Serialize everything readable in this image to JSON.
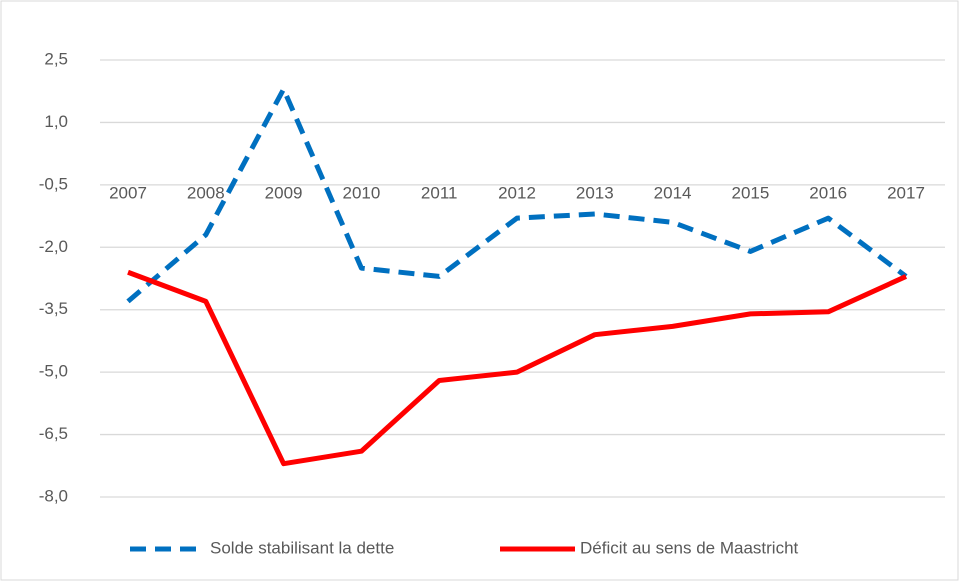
{
  "chart_data": {
    "type": "line",
    "categories": [
      "2007",
      "2008",
      "2009",
      "2010",
      "2011",
      "2012",
      "2013",
      "2014",
      "2015",
      "2016",
      "2017"
    ],
    "series": [
      {
        "name": "Solde stabilisant la dette",
        "color": "#0070c0",
        "dash": true,
        "values": [
          -3.3,
          -1.7,
          1.8,
          -2.5,
          -2.7,
          -1.3,
          -1.2,
          -1.4,
          -2.1,
          -1.3,
          -2.7
        ]
      },
      {
        "name": "Déficit au sens de Maastricht",
        "color": "#ff0000",
        "dash": false,
        "values": [
          -2.6,
          -3.3,
          -7.2,
          -6.9,
          -5.2,
          -5.0,
          -4.1,
          -3.9,
          -3.6,
          -3.55,
          -2.7
        ]
      }
    ],
    "ylim": [
      -8,
      2.5
    ],
    "yticks": [
      {
        "value": 2.5,
        "label": "2,5"
      },
      {
        "value": 1,
        "label": "1,0"
      },
      {
        "value": -0.5,
        "label": "-0,5"
      },
      {
        "value": -2,
        "label": "-2,0"
      },
      {
        "value": -3.5,
        "label": "-3,5"
      },
      {
        "value": -5,
        "label": "-5,0"
      },
      {
        "value": -6.5,
        "label": "-6,5"
      },
      {
        "value": -8,
        "label": "-8,0"
      }
    ],
    "grid": true,
    "legend": "bottom"
  }
}
